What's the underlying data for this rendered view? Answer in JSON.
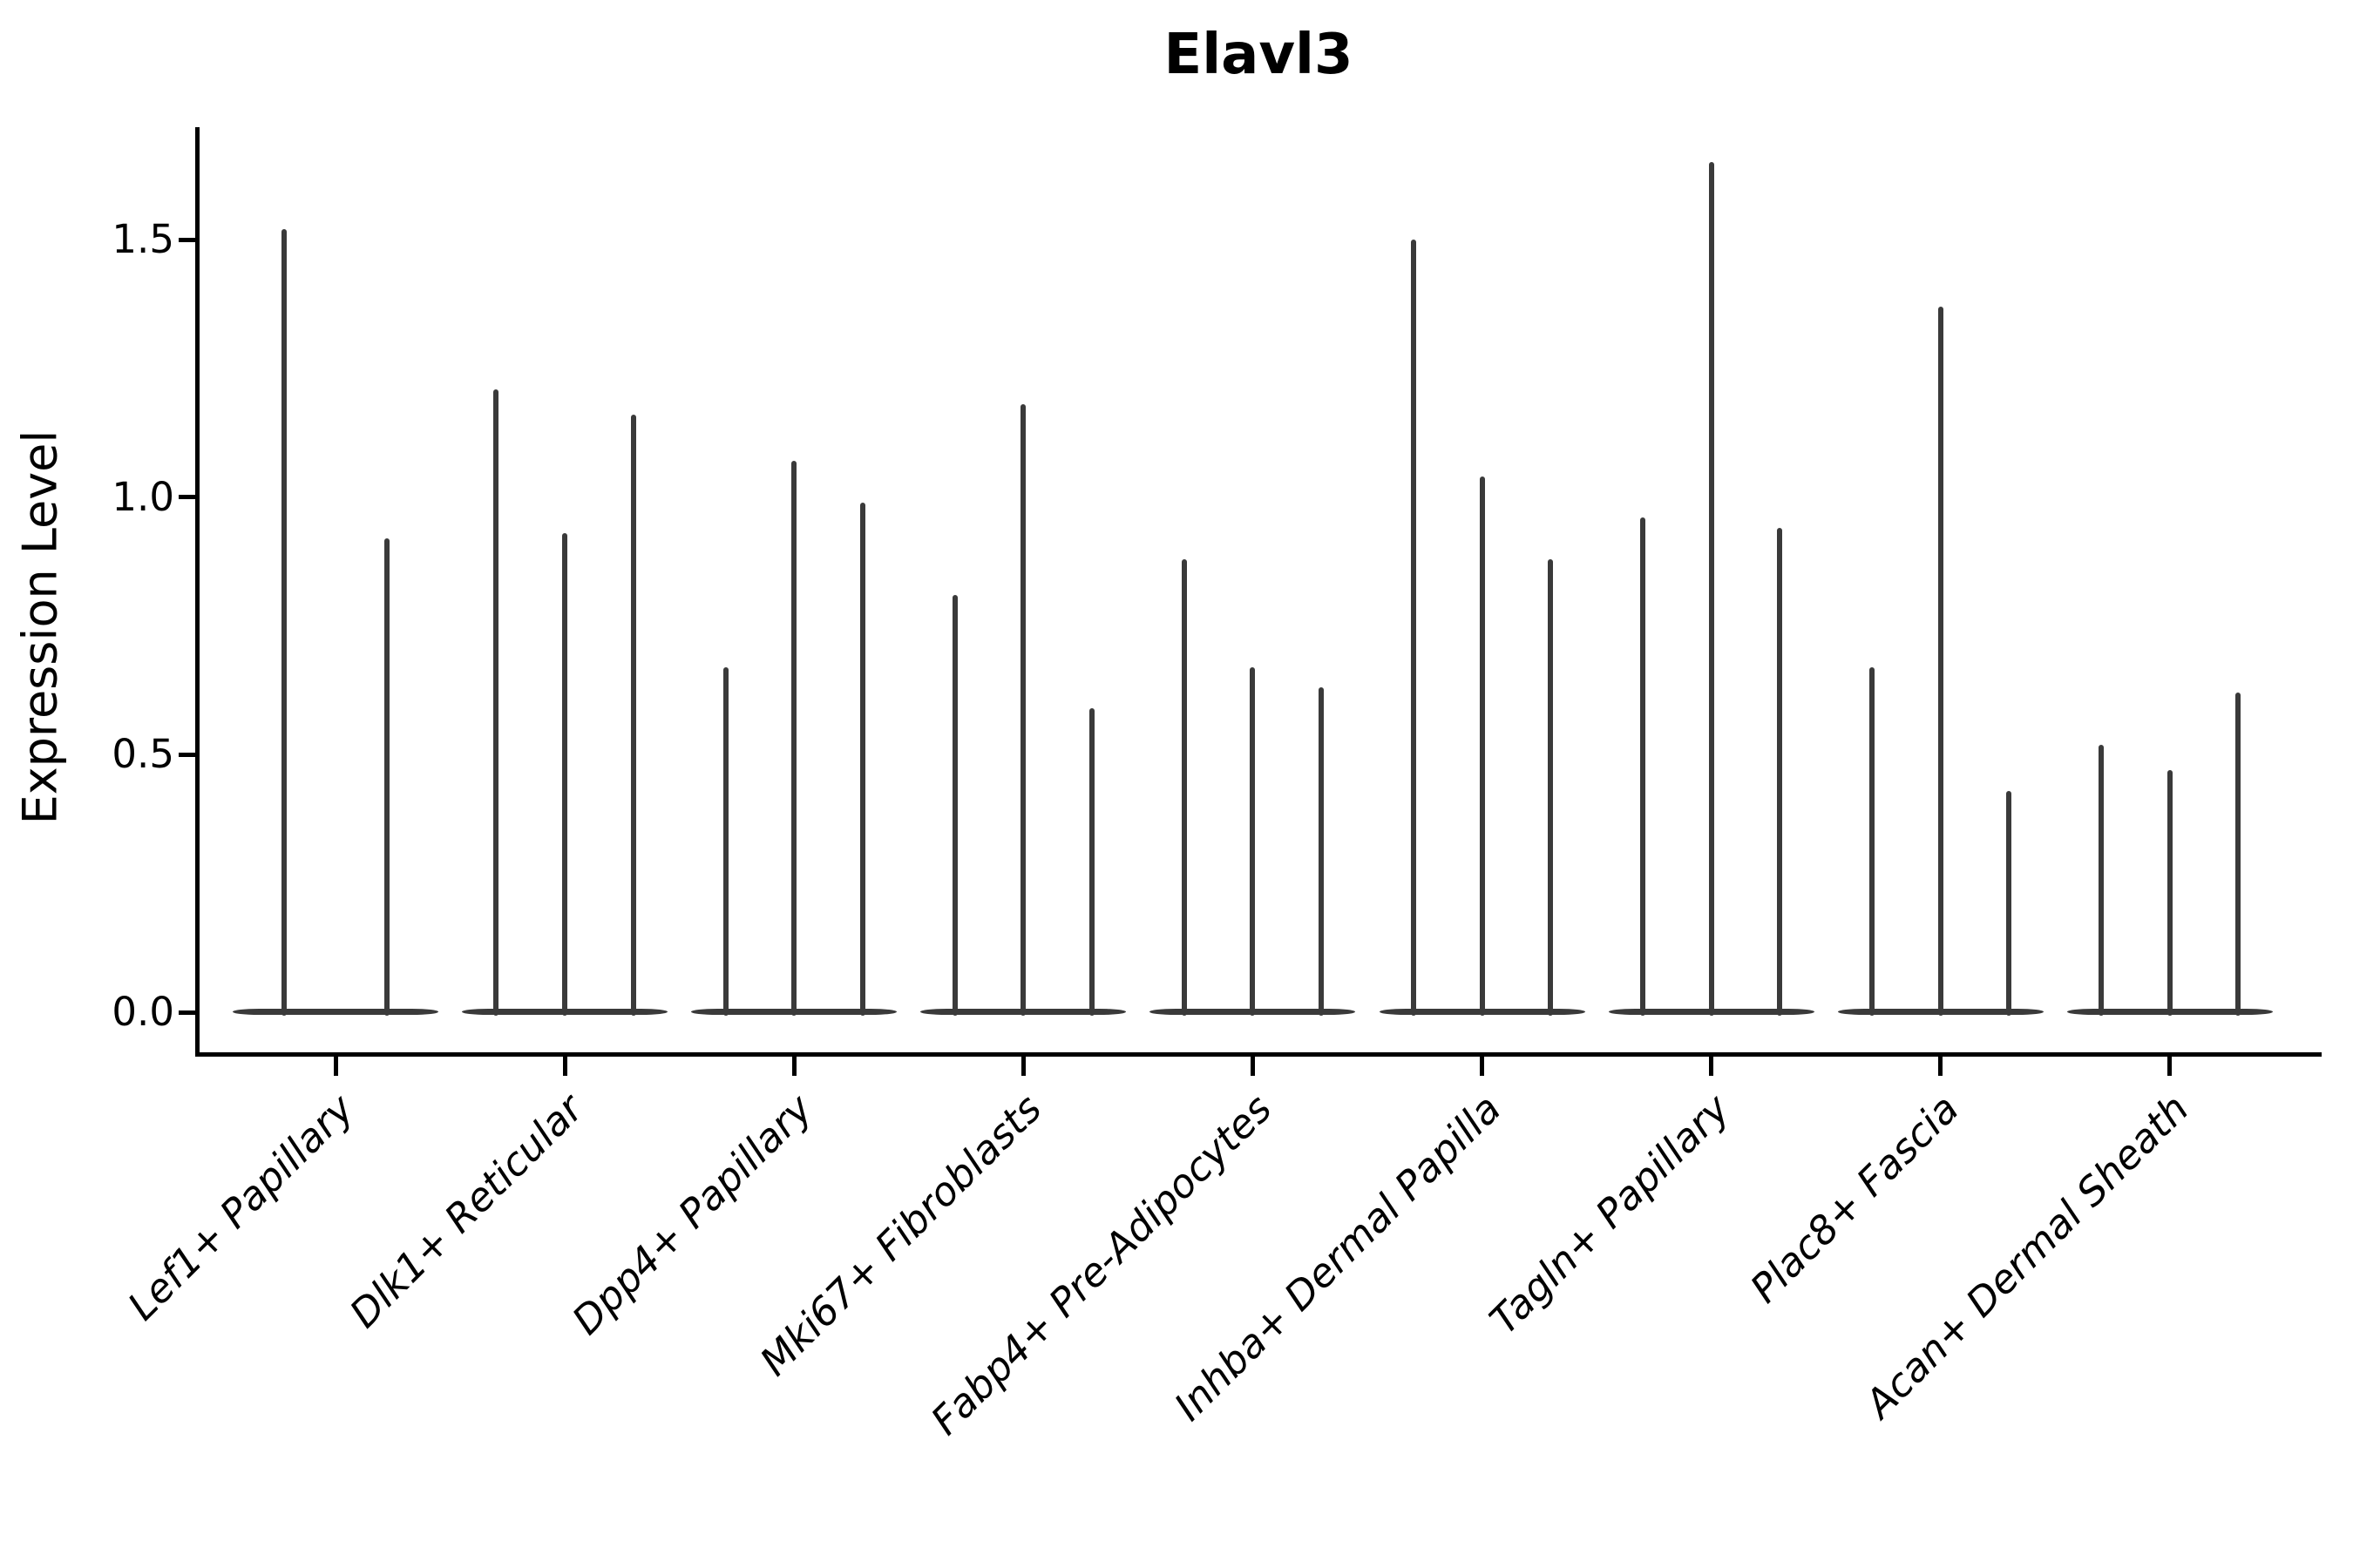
{
  "title": "Elavl3",
  "axes": {
    "ylabel": "Expression Level",
    "ytick_labels": [
      "0.0",
      "0.5",
      "1.0",
      "1.5"
    ]
  },
  "style": {
    "violin_color": "#3a3a3a",
    "axis_color": "#000000",
    "text_color": "#000000",
    "background": "#ffffff"
  },
  "chart_data": {
    "type": "violin",
    "title": "Elavl3",
    "xlabel": "",
    "ylabel": "Expression Level",
    "ylim": [
      0,
      1.72
    ],
    "yticks": [
      0.0,
      0.5,
      1.0,
      1.5
    ],
    "grid": false,
    "legend": "none",
    "description": "Single-gene expression violin plot; each category shows 2-3 thin violins whose mass is concentrated at 0 with a narrow tail up to a maximum expression value.",
    "body_at_zero": true,
    "categories": [
      "Lef1+ Papillary",
      "Dlk1+ Reticular",
      "Dpp4+ Papillary",
      "Mki67+ Fibroblasts",
      "Fabp4+ Pre-Adipocytes",
      "Inhba+ Dermal Papilla",
      "Tagln+ Papillary",
      "Plac8+ Fascia",
      "Acan+ Dermal Sheath"
    ],
    "series": [
      {
        "category": "Lef1+ Papillary",
        "violin_max_values": [
          1.52,
          0.92
        ]
      },
      {
        "category": "Dlk1+ Reticular",
        "violin_max_values": [
          1.21,
          0.93,
          1.16
        ]
      },
      {
        "category": "Dpp4+ Papillary",
        "violin_max_values": [
          0.67,
          1.07,
          0.99
        ]
      },
      {
        "category": "Mki67+ Fibroblasts",
        "violin_max_values": [
          0.81,
          1.18,
          0.59
        ]
      },
      {
        "category": "Fabp4+ Pre-Adipocytes",
        "violin_max_values": [
          0.88,
          0.67,
          0.63
        ]
      },
      {
        "category": "Inhba+ Dermal Papilla",
        "violin_max_values": [
          1.5,
          1.04,
          0.88
        ]
      },
      {
        "category": "Tagln+ Papillary",
        "violin_max_values": [
          0.96,
          1.65,
          0.94
        ]
      },
      {
        "category": "Plac8+ Fascia",
        "violin_max_values": [
          0.67,
          1.37,
          0.43
        ]
      },
      {
        "category": "Acan+ Dermal Sheath",
        "violin_max_values": [
          0.52,
          0.47,
          0.62
        ]
      }
    ]
  }
}
